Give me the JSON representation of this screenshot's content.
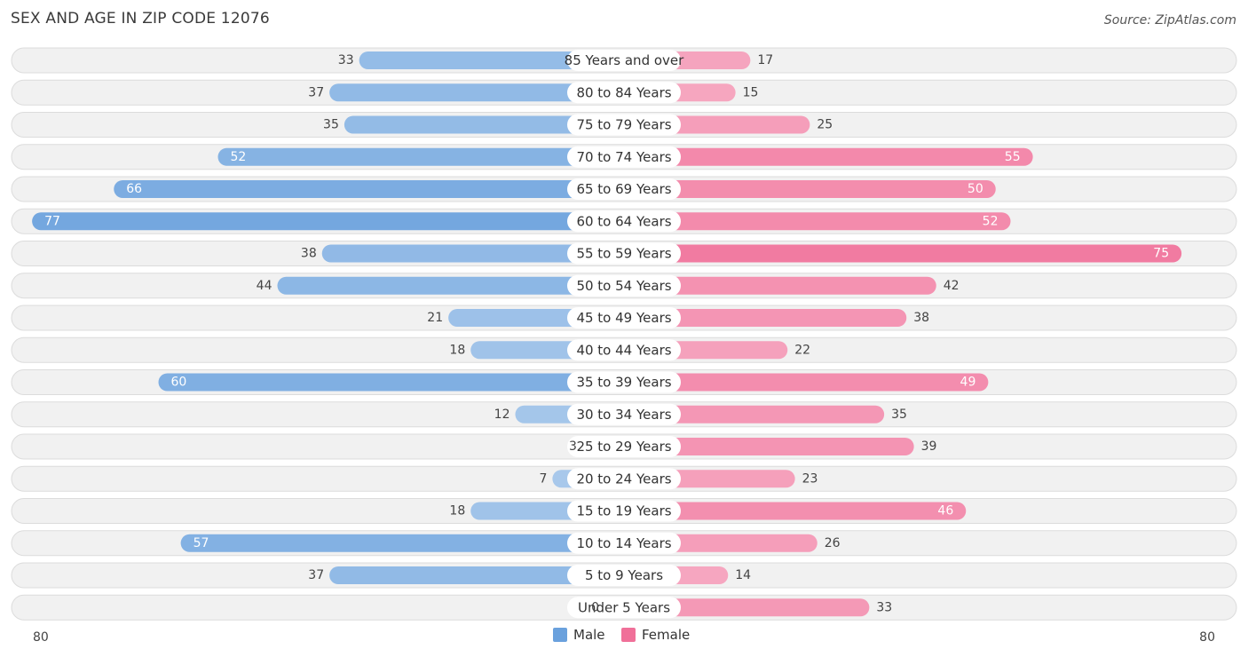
{
  "title": "SEX AND AGE IN ZIP CODE 12076",
  "source": "Source: ZipAtlas.com",
  "colors": {
    "male": "#6aa1dd",
    "female": "#f07099"
  },
  "chart_data": {
    "type": "bar",
    "orientation": "horizontal-diverging",
    "categories": [
      "85 Years and over",
      "80 to 84 Years",
      "75 to 79 Years",
      "70 to 74 Years",
      "65 to 69 Years",
      "60 to 64 Years",
      "55 to 59 Years",
      "50 to 54 Years",
      "45 to 49 Years",
      "40 to 44 Years",
      "35 to 39 Years",
      "30 to 34 Years",
      "25 to 29 Years",
      "20 to 24 Years",
      "15 to 19 Years",
      "10 to 14 Years",
      "5 to 9 Years",
      "Under 5 Years"
    ],
    "series": [
      {
        "name": "Male",
        "values": [
          33,
          37,
          35,
          52,
          66,
          77,
          38,
          44,
          21,
          18,
          60,
          12,
          3,
          7,
          18,
          57,
          37,
          0
        ]
      },
      {
        "name": "Female",
        "values": [
          17,
          15,
          25,
          55,
          50,
          52,
          75,
          42,
          38,
          22,
          49,
          35,
          39,
          23,
          46,
          26,
          14,
          33
        ]
      }
    ],
    "axis_min_label": "80",
    "axis_max_label": "80",
    "xlim": [
      -80,
      80
    ],
    "legend_position": "bottom-center"
  }
}
